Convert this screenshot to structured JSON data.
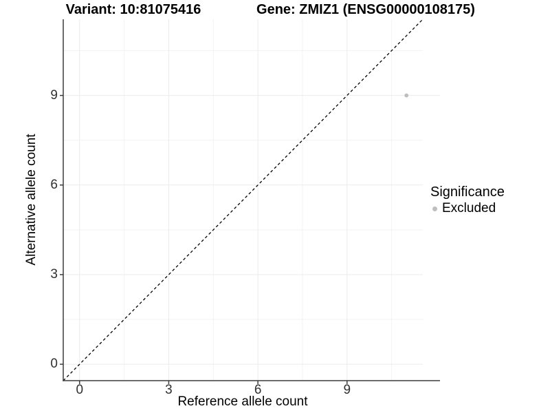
{
  "titles": {
    "left": "Variant: 10:81075416",
    "right": "Gene: ZMIZ1 (ENSG00000108175)"
  },
  "chart_data": {
    "type": "scatter",
    "xlabel": "Reference allele count",
    "ylabel": "Alternative allele count",
    "x_ticks": [
      0,
      3,
      6,
      9
    ],
    "y_ticks": [
      0,
      3,
      6,
      9
    ],
    "minor_ticks": [
      1.5,
      4.5,
      7.5,
      10.5
    ],
    "xlim": [
      -0.55,
      11.55
    ],
    "ylim": [
      -0.55,
      11.55
    ],
    "grid": true,
    "reference_line": {
      "type": "abline",
      "slope": 1,
      "intercept": 0,
      "style": "dashed",
      "color": "#000000"
    },
    "series": [
      {
        "name": "Excluded",
        "color": "#bebebe",
        "points": [
          {
            "x": 11,
            "y": 9
          }
        ]
      }
    ],
    "legend": {
      "position": "right",
      "title": "Significance",
      "items": [
        {
          "label": "Excluded",
          "color": "#bebebe"
        }
      ]
    }
  },
  "colors": {
    "background": "#ffffff",
    "axis_line": "#3c3c3c",
    "tick_text": "#303030",
    "grid_major": "#ebebeb",
    "grid_minor": "#f2f2f2",
    "point": "#bebebe",
    "reference_line": "#000000"
  }
}
